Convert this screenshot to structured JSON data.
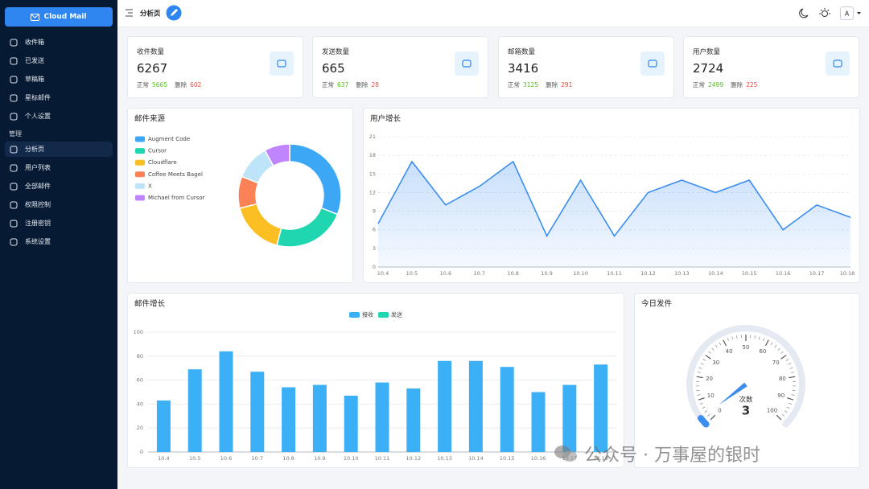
{
  "sidebar": {
    "brand": "Cloud Mail",
    "menu": [
      "收件箱",
      "已发送",
      "草稿箱",
      "星标邮件",
      "个人设置"
    ],
    "section": "管理",
    "admin_menu": [
      "分析页",
      "用户列表",
      "全部邮件",
      "权限控制",
      "注册密钥",
      "系统设置"
    ]
  },
  "header": {
    "title": "分析页",
    "avatar": "A"
  },
  "stats": [
    {
      "title": "收件数量",
      "total": 6267,
      "normal_label": "正常",
      "normal": 5665,
      "deleted_label": "删除",
      "deleted": 602
    },
    {
      "title": "发送数量",
      "total": 665,
      "normal_label": "正常",
      "normal": 637,
      "deleted_label": "删除",
      "deleted": 28
    },
    {
      "title": "邮箱数量",
      "total": 3416,
      "normal_label": "正常",
      "normal": 3125,
      "deleted_label": "删除",
      "deleted": 291
    },
    {
      "title": "用户数量",
      "total": 2724,
      "normal_label": "正常",
      "normal": 2499,
      "deleted_label": "删除",
      "deleted": 225
    }
  ],
  "chart_data": [
    {
      "type": "pie",
      "title": "邮件来源",
      "donut": true,
      "categories": [
        "Augment Code",
        "Cursor",
        "Cloudflare",
        "Coffee Meets Bagel",
        "X",
        "Michael from Cursor"
      ],
      "values": [
        31,
        23,
        17,
        10,
        11,
        8
      ],
      "colors": [
        "#3ba7f5",
        "#1fd6b0",
        "#fbbf24",
        "#fb8156",
        "#bde4f8",
        "#c084fc"
      ]
    },
    {
      "type": "line",
      "title": "用户增长",
      "area": true,
      "grid": true,
      "color": "#3b8df0",
      "categories": [
        "10.4",
        "10.5",
        "10.6",
        "10.7",
        "10.8",
        "10.9",
        "10.10",
        "10.11",
        "10.12",
        "10.13",
        "10.14",
        "10.15",
        "10.16",
        "10.17",
        "10.18"
      ],
      "values": [
        7,
        17,
        10,
        13,
        17,
        5,
        14,
        5,
        12,
        14,
        12,
        14,
        6,
        10,
        8
      ],
      "ylim": [
        0,
        21
      ],
      "yticks": [
        0,
        3,
        6,
        9,
        12,
        15,
        18,
        21
      ]
    },
    {
      "type": "bar",
      "title": "邮件增长",
      "grid": true,
      "legend": "top",
      "categories": [
        "10.4",
        "10.5",
        "10.6",
        "10.7",
        "10.8",
        "10.9",
        "10.10",
        "10.11",
        "10.12",
        "10.13",
        "10.14",
        "10.15",
        "10.16",
        "10.17",
        "10.18"
      ],
      "series": [
        {
          "name": "接收",
          "color": "#3bb0f7",
          "values": [
            43,
            69,
            84,
            67,
            54,
            56,
            47,
            58,
            53,
            76,
            76,
            71,
            50,
            56,
            73
          ]
        },
        {
          "name": "发送",
          "color": "#1fd6b0",
          "values": [
            0,
            0,
            0,
            0,
            0,
            0,
            0,
            0,
            0,
            0,
            0,
            0,
            0,
            0,
            0
          ]
        }
      ],
      "ylim": [
        0,
        100
      ],
      "yticks": [
        0,
        20,
        40,
        60,
        80,
        100
      ]
    },
    {
      "type": "gauge",
      "title": "今日发件",
      "label": "次数",
      "value": 3,
      "color": "#3b8df0",
      "lim": [
        0,
        100
      ],
      "ticks": [
        0,
        10,
        20,
        30,
        40,
        50,
        60,
        70,
        80,
        90,
        100
      ]
    }
  ],
  "watermark": "公众号 · 万事屋的银时"
}
